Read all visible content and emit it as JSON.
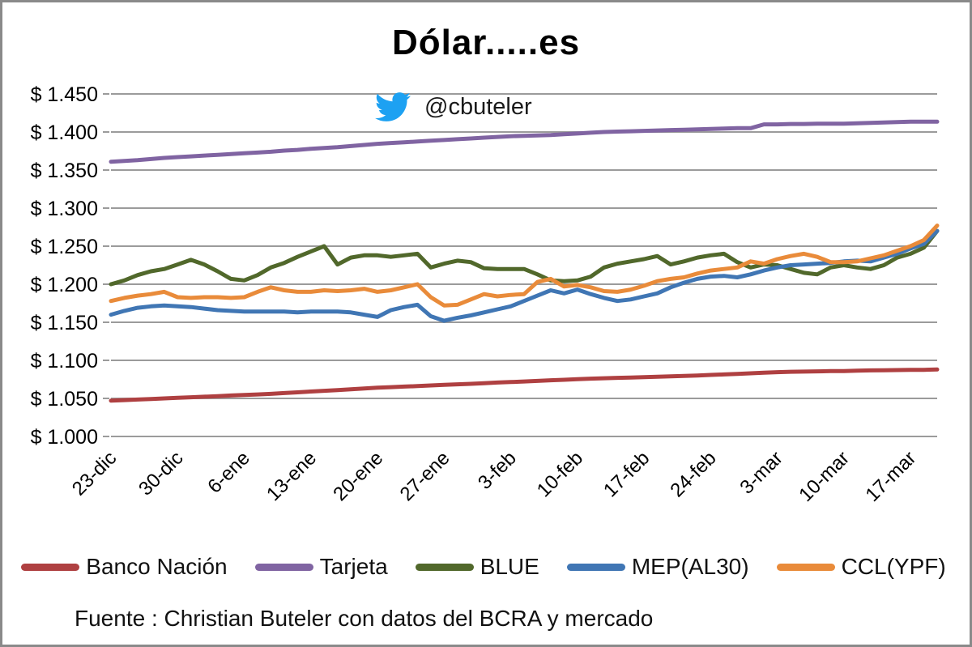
{
  "window": {
    "border_color": "#8A8A8A",
    "background": "#FFFFFF"
  },
  "title": "Dólar.....es",
  "twitter": {
    "handle": "@cbuteler",
    "icon_color": "#1DA1F2"
  },
  "source": "Fuente : Christian Buteler con datos del BCRA y mercado",
  "legend": {
    "items": [
      {
        "label": "Banco Nación",
        "color": "#AF4041"
      },
      {
        "label": "Tarjeta",
        "color": "#8064A2"
      },
      {
        "label": "BLUE",
        "color": "#51682B"
      },
      {
        "label": "MEP(AL30)",
        "color": "#4076B4"
      },
      {
        "label": "CCL(YPF)",
        "color": "#E98B3A"
      }
    ]
  },
  "chart_data": {
    "type": "line",
    "title": "Dólar.....es",
    "xlabel": "",
    "ylabel": "",
    "grid": true,
    "grid_color": "#9B9B9B",
    "legend_position": "bottom",
    "n_points": 63,
    "tick_every": 5,
    "x_tick_labels": [
      "23-dic",
      "30-dic",
      "6-ene",
      "13-ene",
      "20-ene",
      "27-ene",
      "3-feb",
      "10-feb",
      "17-feb",
      "24-feb",
      "3-mar",
      "10-mar",
      "17-mar"
    ],
    "y_axis": {
      "min": 1.0,
      "max": 1.45,
      "step": 0.05,
      "tick_labels": [
        "$ 1.450",
        "$ 1.400",
        "$ 1.350",
        "$ 1.300",
        "$ 1.250",
        "$ 1.200",
        "$ 1.150",
        "$ 1.100",
        "$ 1.050",
        "$ 1.000"
      ]
    },
    "series": [
      {
        "name": "Banco Nación",
        "color": "#AF4041",
        "values": [
          1.047,
          1.0478,
          1.0485,
          1.0492,
          1.05,
          1.0508,
          1.0515,
          1.0522,
          1.053,
          1.0538,
          1.0545,
          1.0552,
          1.056,
          1.057,
          1.058,
          1.059,
          1.06,
          1.061,
          1.062,
          1.063,
          1.064,
          1.0648,
          1.0655,
          1.0662,
          1.067,
          1.0678,
          1.0685,
          1.0692,
          1.07,
          1.0708,
          1.0715,
          1.0722,
          1.073,
          1.0738,
          1.0745,
          1.0752,
          1.076,
          1.0765,
          1.077,
          1.0775,
          1.078,
          1.0785,
          1.079,
          1.0795,
          1.08,
          1.0808,
          1.0815,
          1.0822,
          1.083,
          1.0838,
          1.0845,
          1.085,
          1.0852,
          1.0855,
          1.0858,
          1.086,
          1.0865,
          1.0868,
          1.087,
          1.0872,
          1.0875,
          1.0876,
          1.088
        ]
      },
      {
        "name": "Tarjeta",
        "color": "#8064A2",
        "values": [
          1.361,
          1.362,
          1.363,
          1.3645,
          1.366,
          1.367,
          1.368,
          1.369,
          1.37,
          1.371,
          1.372,
          1.373,
          1.374,
          1.3755,
          1.3765,
          1.378,
          1.379,
          1.38,
          1.3815,
          1.383,
          1.3845,
          1.3855,
          1.3865,
          1.3875,
          1.3885,
          1.3895,
          1.3905,
          1.3915,
          1.3925,
          1.3935,
          1.3945,
          1.395,
          1.3955,
          1.396,
          1.397,
          1.398,
          1.399,
          1.4,
          1.4005,
          1.401,
          1.4015,
          1.402,
          1.4025,
          1.403,
          1.4035,
          1.404,
          1.4045,
          1.405,
          1.405,
          1.41,
          1.41,
          1.4105,
          1.4105,
          1.411,
          1.411,
          1.411,
          1.4115,
          1.412,
          1.4125,
          1.413,
          1.4135,
          1.4135,
          1.4135
        ]
      },
      {
        "name": "BLUE",
        "color": "#51682B",
        "values": [
          1.2,
          1.205,
          1.212,
          1.217,
          1.22,
          1.226,
          1.232,
          1.226,
          1.217,
          1.207,
          1.205,
          1.212,
          1.222,
          1.228,
          1.236,
          1.243,
          1.25,
          1.226,
          1.235,
          1.238,
          1.238,
          1.236,
          1.238,
          1.24,
          1.222,
          1.227,
          1.231,
          1.229,
          1.221,
          1.22,
          1.22,
          1.22,
          1.213,
          1.205,
          1.204,
          1.205,
          1.21,
          1.222,
          1.227,
          1.23,
          1.233,
          1.237,
          1.226,
          1.23,
          1.235,
          1.238,
          1.24,
          1.229,
          1.222,
          1.226,
          1.225,
          1.22,
          1.215,
          1.213,
          1.222,
          1.225,
          1.222,
          1.22,
          1.225,
          1.235,
          1.24,
          1.248,
          1.27
        ]
      },
      {
        "name": "MEP(AL30)",
        "color": "#4076B4",
        "values": [
          1.16,
          1.165,
          1.169,
          1.171,
          1.172,
          1.171,
          1.17,
          1.168,
          1.166,
          1.165,
          1.164,
          1.164,
          1.164,
          1.164,
          1.163,
          1.164,
          1.164,
          1.164,
          1.163,
          1.16,
          1.157,
          1.166,
          1.17,
          1.173,
          1.158,
          1.152,
          1.156,
          1.159,
          1.163,
          1.167,
          1.171,
          1.178,
          1.185,
          1.192,
          1.188,
          1.193,
          1.187,
          1.182,
          1.178,
          1.18,
          1.184,
          1.188,
          1.196,
          1.202,
          1.207,
          1.21,
          1.211,
          1.209,
          1.213,
          1.218,
          1.222,
          1.225,
          1.226,
          1.227,
          1.228,
          1.23,
          1.231,
          1.23,
          1.235,
          1.24,
          1.247,
          1.253,
          1.27
        ]
      },
      {
        "name": "CCL(YPF)",
        "color": "#E98B3A",
        "values": [
          1.178,
          1.182,
          1.185,
          1.187,
          1.19,
          1.183,
          1.182,
          1.183,
          1.183,
          1.182,
          1.183,
          1.19,
          1.196,
          1.192,
          1.19,
          1.19,
          1.192,
          1.191,
          1.192,
          1.194,
          1.19,
          1.192,
          1.196,
          1.2,
          1.183,
          1.172,
          1.173,
          1.18,
          1.187,
          1.184,
          1.186,
          1.187,
          1.203,
          1.207,
          1.197,
          1.199,
          1.196,
          1.191,
          1.19,
          1.193,
          1.198,
          1.204,
          1.207,
          1.209,
          1.214,
          1.218,
          1.22,
          1.222,
          1.23,
          1.227,
          1.233,
          1.237,
          1.24,
          1.236,
          1.229,
          1.229,
          1.23,
          1.234,
          1.238,
          1.244,
          1.25,
          1.258,
          1.277
        ]
      }
    ]
  }
}
